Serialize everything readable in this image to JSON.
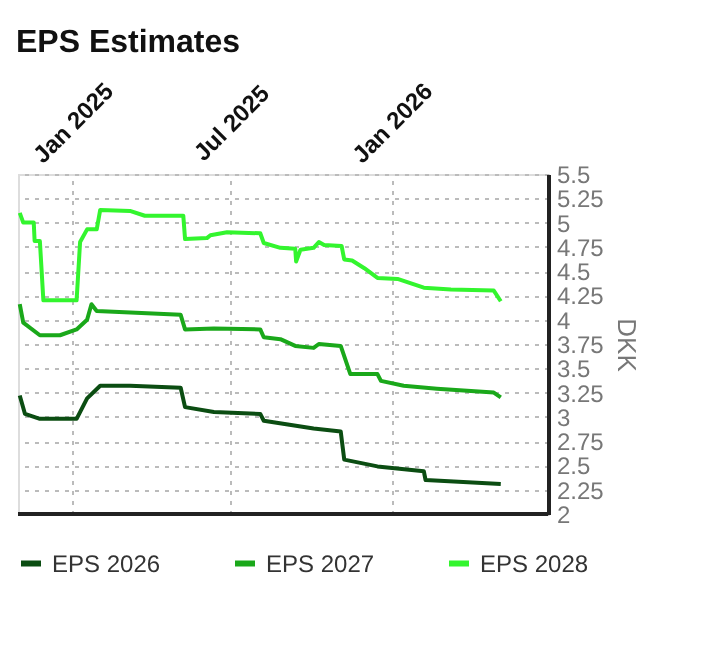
{
  "chart_data": {
    "type": "line",
    "title": "EPS Estimates",
    "ylabel": "DKK",
    "xlim": [
      "2024-10-31",
      "2026-06-29"
    ],
    "xticks": [
      {
        "value": "2025-01-01",
        "label": "Jan 2025"
      },
      {
        "value": "2025-07-01",
        "label": "Jul 2025"
      },
      {
        "value": "2026-01-01",
        "label": "Jan 2026"
      }
    ],
    "ylim": [
      2,
      5.5
    ],
    "yticks": [
      2,
      2.25,
      2.5,
      2.75,
      3,
      3.25,
      3.5,
      3.75,
      4,
      4.25,
      4.5,
      4.75,
      5,
      5.25,
      5.5
    ],
    "grid": true,
    "legend": "bottom",
    "line_style": "solid",
    "marker": "none",
    "series": [
      {
        "name": "EPS 2026",
        "color": "#0b4d12",
        "x": [
          "2024-11-02",
          "2024-11-08",
          "2024-11-25",
          "2025-01-06",
          "2025-01-18",
          "2025-02-02",
          "2025-03-08",
          "2025-05-05",
          "2025-05-10",
          "2025-06-12",
          "2025-08-04",
          "2025-08-08",
          "2025-10-04",
          "2025-11-04",
          "2025-11-08",
          "2025-12-16",
          "2026-02-07",
          "2026-02-09",
          "2026-05-06"
        ],
        "values": [
          3.22,
          3.03,
          2.98,
          2.98,
          3.19,
          3.32,
          3.32,
          3.3,
          3.1,
          3.05,
          3.03,
          2.96,
          2.88,
          2.85,
          2.56,
          2.49,
          2.44,
          2.35,
          2.31
        ]
      },
      {
        "name": "EPS 2027",
        "color": "#1aa81a",
        "x": [
          "2024-11-02",
          "2024-11-06",
          "2024-11-25",
          "2024-12-18",
          "2025-01-06",
          "2025-01-18",
          "2025-01-23",
          "2025-01-29",
          "2025-05-05",
          "2025-05-10",
          "2025-06-12",
          "2025-08-04",
          "2025-08-08",
          "2025-08-27",
          "2025-09-13",
          "2025-10-04",
          "2025-10-10",
          "2025-11-04",
          "2025-11-15",
          "2025-12-16",
          "2025-12-20",
          "2026-01-15",
          "2026-02-22",
          "2026-04-28",
          "2026-05-06"
        ],
        "values": [
          4.16,
          3.97,
          3.84,
          3.84,
          3.9,
          4.0,
          4.16,
          4.09,
          4.05,
          3.9,
          3.91,
          3.9,
          3.82,
          3.8,
          3.73,
          3.71,
          3.75,
          3.73,
          3.44,
          3.44,
          3.37,
          3.32,
          3.29,
          3.25,
          3.2
        ]
      },
      {
        "name": "EPS 2028",
        "color": "#33f52e",
        "x": [
          "2024-11-02",
          "2024-11-06",
          "2024-11-18",
          "2024-11-19",
          "2024-11-25",
          "2024-11-29",
          "2025-01-06",
          "2025-01-10",
          "2025-01-18",
          "2025-01-29",
          "2025-02-02",
          "2025-03-08",
          "2025-03-25",
          "2025-05-08",
          "2025-05-10",
          "2025-06-04",
          "2025-06-08",
          "2025-06-27",
          "2025-08-04",
          "2025-08-08",
          "2025-08-27",
          "2025-09-13",
          "2025-09-14",
          "2025-09-19",
          "2025-10-04",
          "2025-10-10",
          "2025-10-16",
          "2025-11-05",
          "2025-11-08",
          "2025-11-17",
          "2025-12-01",
          "2025-12-16",
          "2026-01-08",
          "2026-02-07",
          "2026-03-10",
          "2026-04-28",
          "2026-05-06"
        ],
        "values": [
          5.1,
          5.0,
          5.0,
          4.81,
          4.81,
          4.2,
          4.2,
          4.8,
          4.93,
          4.93,
          5.13,
          5.12,
          5.07,
          5.07,
          4.83,
          4.84,
          4.87,
          4.9,
          4.89,
          4.79,
          4.74,
          4.73,
          4.6,
          4.72,
          4.74,
          4.8,
          4.77,
          4.76,
          4.62,
          4.61,
          4.53,
          4.43,
          4.42,
          4.33,
          4.31,
          4.3,
          4.19
        ]
      }
    ]
  }
}
